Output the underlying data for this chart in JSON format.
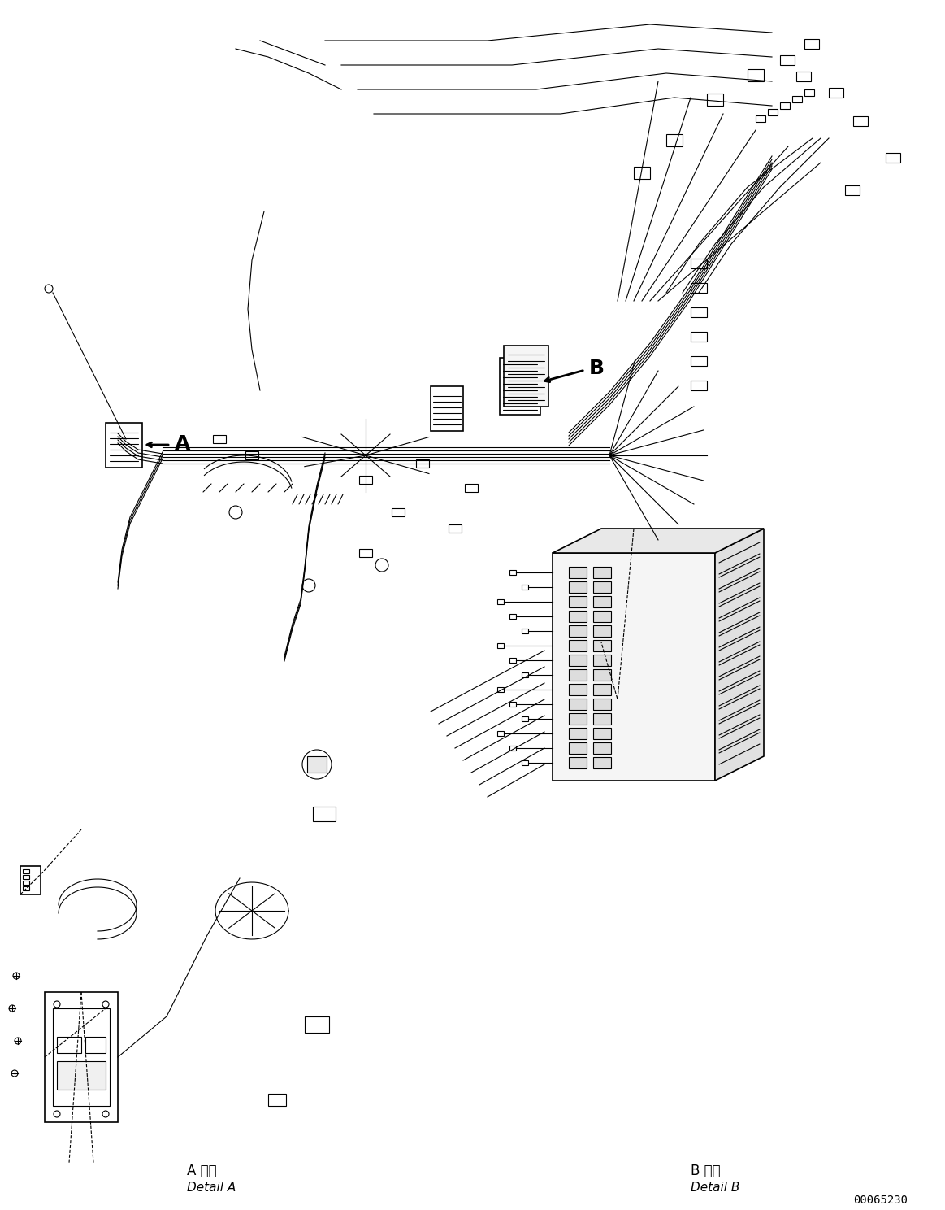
{
  "background_color": "#ffffff",
  "line_color": "#000000",
  "figure_width": 11.63,
  "figure_height": 14.88,
  "dpi": 100,
  "label_A": "A",
  "label_B": "B",
  "detail_a_japanese": "A 詳細",
  "detail_a_english": "Detail A",
  "detail_b_japanese": "B 詳細",
  "detail_b_english": "Detail B",
  "part_number": "00065230"
}
